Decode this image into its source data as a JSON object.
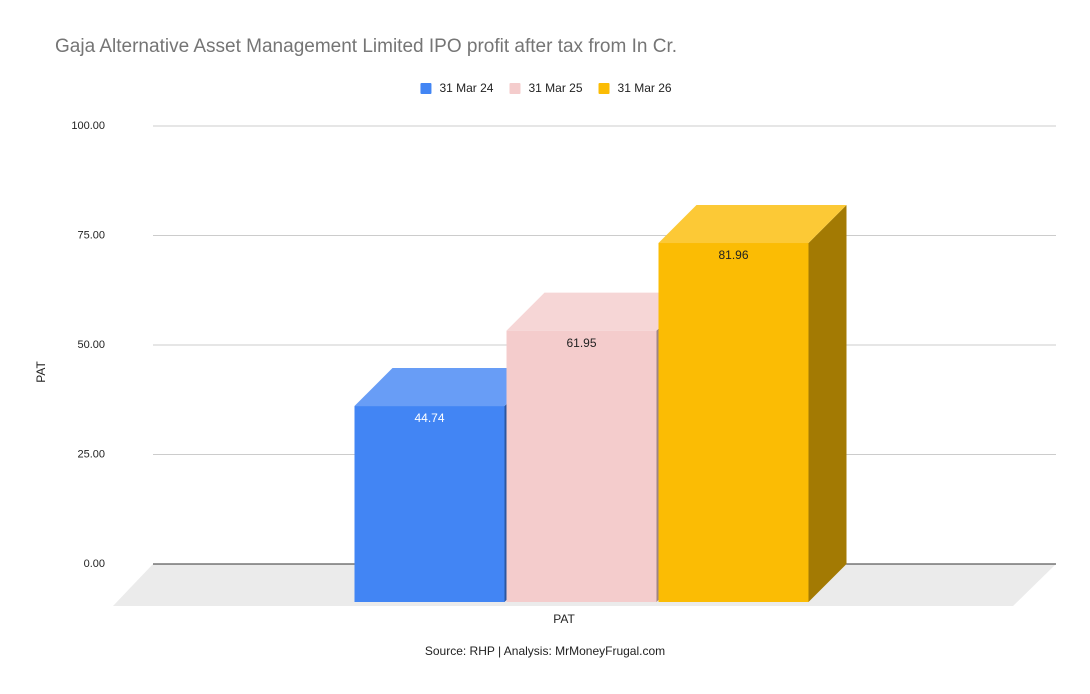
{
  "chart_data": {
    "type": "bar3d",
    "title": "Gaja Alternative Asset Management Limited IPO profit after tax from In Cr.",
    "categories": [
      "PAT"
    ],
    "x_label": "PAT",
    "y_label": "PAT",
    "series": [
      {
        "name": "31 Mar 24",
        "color": "#4285f4",
        "values": [
          44.74
        ]
      },
      {
        "name": "31 Mar 25",
        "color": "#f4cccc",
        "values": [
          61.95
        ]
      },
      {
        "name": "31 Mar 26",
        "color": "#fbbc04",
        "values": [
          81.96
        ]
      }
    ],
    "ylim": [
      0,
      100
    ],
    "yticks": [
      {
        "value": 0,
        "label": "0.00"
      },
      {
        "value": 25,
        "label": "25.00"
      },
      {
        "value": 50,
        "label": "50.00"
      },
      {
        "value": 75,
        "label": "75.00"
      },
      {
        "value": 100,
        "label": "100.00"
      }
    ],
    "grid": true,
    "legend": "top",
    "source": "Source: RHP | Analysis: MrMoneyFrugal.com"
  }
}
